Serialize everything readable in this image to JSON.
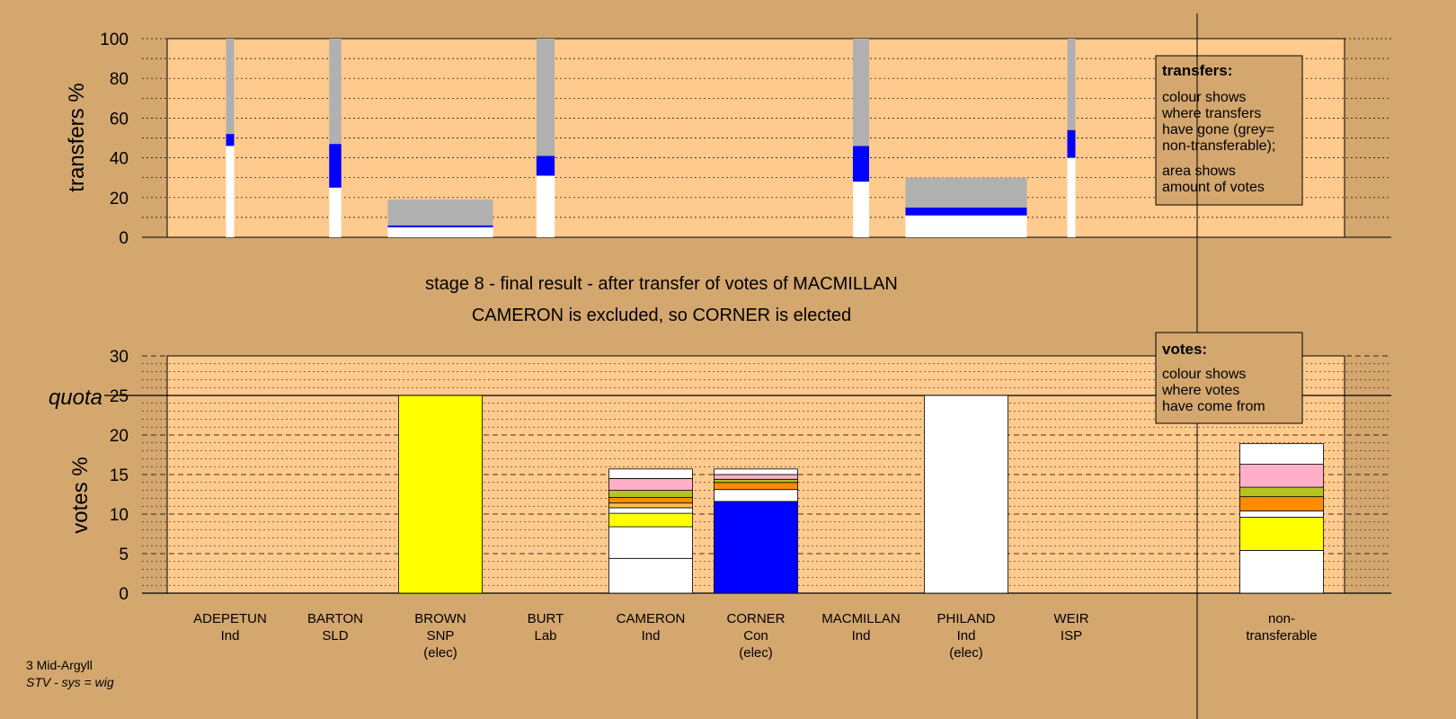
{
  "chart_data": [
    {
      "type": "bar",
      "name": "transfers",
      "ylabel": "transfers %",
      "ylim": [
        0,
        100
      ],
      "yticks": [
        "0",
        "20",
        "40",
        "60",
        "80",
        "100"
      ],
      "bars": [
        {
          "candidate": "ADEPETUN",
          "width_votes": 0.2,
          "segments": [
            {
              "color": "#ffffff",
              "value": 46
            },
            {
              "color": "#0000ff",
              "value": 6
            },
            {
              "color": "#b0b0b0",
              "value": 48
            }
          ]
        },
        {
          "candidate": "BARTON",
          "width_votes": 0.3,
          "segments": [
            {
              "color": "#ffffff",
              "value": 25
            },
            {
              "color": "#0000ff",
              "value": 22
            },
            {
              "color": "#b0b0b0",
              "value": 53
            }
          ]
        },
        {
          "candidate": "BROWN",
          "width_votes": 2.6,
          "segments": [
            {
              "color": "#ffffff",
              "value": 5
            },
            {
              "color": "#0000ff",
              "value": 1
            },
            {
              "color": "#b0b0b0",
              "value": 13
            }
          ]
        },
        {
          "candidate": "BURT",
          "width_votes": 0.45,
          "segments": [
            {
              "color": "#ffffff",
              "value": 31
            },
            {
              "color": "#0000ff",
              "value": 10
            },
            {
              "color": "#b0b0b0",
              "value": 59
            }
          ]
        },
        {
          "candidate": "MACMILLAN",
          "width_votes": 0.4,
          "segments": [
            {
              "color": "#ffffff",
              "value": 28
            },
            {
              "color": "#0000ff",
              "value": 18
            },
            {
              "color": "#b0b0b0",
              "value": 54
            }
          ]
        },
        {
          "candidate": "PHILAND",
          "width_votes": 3.0,
          "segments": [
            {
              "color": "#ffffff",
              "value": 11
            },
            {
              "color": "#0000ff",
              "value": 4
            },
            {
              "color": "#b0b0b0",
              "value": 15
            }
          ]
        },
        {
          "candidate": "WEIR",
          "width_votes": 0.2,
          "segments": [
            {
              "color": "#ffffff",
              "value": 40
            },
            {
              "color": "#0000ff",
              "value": 14
            },
            {
              "color": "#b0b0b0",
              "value": 46
            }
          ]
        }
      ],
      "legend": {
        "title": "transfers:",
        "lines_1": [
          "colour shows",
          "where transfers",
          "have gone (grey=",
          "non-transferable);"
        ],
        "lines_2": [
          "area shows",
          "amount of votes"
        ]
      }
    },
    {
      "type": "bar",
      "name": "votes",
      "ylabel": "votes %",
      "ylim": [
        0,
        30
      ],
      "yticks": [
        "0",
        "5",
        "10",
        "15",
        "20",
        "25",
        "30"
      ],
      "quota": 25,
      "quota_label": "quota",
      "candidates": [
        {
          "name": "ADEPETUN",
          "party": "Ind",
          "status": "",
          "segments": []
        },
        {
          "name": "BARTON",
          "party": "SLD",
          "status": "",
          "segments": []
        },
        {
          "name": "BROWN",
          "party": "SNP",
          "status": "(elec)",
          "segments": [
            {
              "color": "#ffff00",
              "value": 25
            }
          ]
        },
        {
          "name": "BURT",
          "party": "Lab",
          "status": "",
          "segments": []
        },
        {
          "name": "CAMERON",
          "party": "Ind",
          "status": "",
          "segments": [
            {
              "color": "#ffffff",
              "value": 4.4
            },
            {
              "color": "#ffffff",
              "value": 4.0
            },
            {
              "color": "#ffff00",
              "value": 1.7
            },
            {
              "color": "#ffffff",
              "value": 0.7
            },
            {
              "color": "#f5c24a",
              "value": 0.6
            },
            {
              "color": "#ff8c00",
              "value": 0.7
            },
            {
              "color": "#b5c420",
              "value": 0.9
            },
            {
              "color": "#ffb0c8",
              "value": 1.5
            },
            {
              "color": "#ffffff",
              "value": 1.2
            }
          ]
        },
        {
          "name": "CORNER",
          "party": "Con",
          "status": "(elec)",
          "segments": [
            {
              "color": "#0000ff",
              "value": 11.6
            },
            {
              "color": "#ffffff",
              "value": 1.5
            },
            {
              "color": "#ff8c00",
              "value": 0.9
            },
            {
              "color": "#b5c420",
              "value": 0.4
            },
            {
              "color": "#ffb0c8",
              "value": 0.6
            },
            {
              "color": "#ffffff",
              "value": 0.7
            }
          ]
        },
        {
          "name": "MACMILLAN",
          "party": "Ind",
          "status": "",
          "segments": []
        },
        {
          "name": "PHILAND",
          "party": "Ind",
          "status": "(elec)",
          "segments": [
            {
              "color": "#ffffff",
              "value": 25
            }
          ]
        },
        {
          "name": "WEIR",
          "party": "ISP",
          "status": "",
          "segments": []
        },
        {
          "name": "non-",
          "party": "transferable",
          "status": "",
          "segments": [
            {
              "color": "#ffffff",
              "value": 5.4
            },
            {
              "color": "#ffff00",
              "value": 4.2
            },
            {
              "color": "#ffffff",
              "value": 0.8
            },
            {
              "color": "#ff8c00",
              "value": 1.8
            },
            {
              "color": "#b5c420",
              "value": 1.2
            },
            {
              "color": "#ffb0c8",
              "value": 2.9
            },
            {
              "color": "#ffffff",
              "value": 2.6
            }
          ]
        }
      ],
      "legend": {
        "title": "votes:",
        "lines": [
          "colour shows",
          "where votes",
          "have come from"
        ]
      }
    }
  ],
  "stage_title": "stage 8 - final result - after transfer of votes of MACMILLAN",
  "stage_subtitle": "CAMERON is excluded, so CORNER is elected",
  "footer": {
    "constituency": "3 Mid-Argyll",
    "system": "STV - sys = wig"
  },
  "colors": {
    "page": "#d4a76f",
    "plot": "#ffca8e",
    "transferred_gray": "#b0b0b0",
    "conservative_blue": "#0000ff",
    "snp_yellow": "#ffff00"
  }
}
